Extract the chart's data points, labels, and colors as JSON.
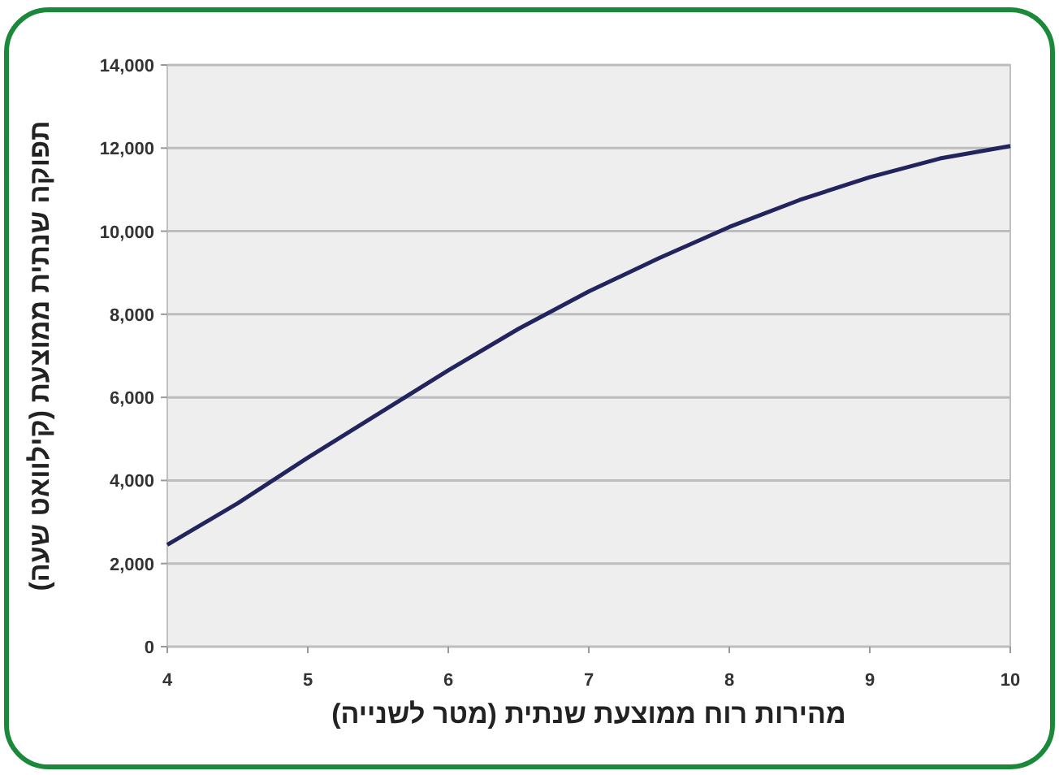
{
  "chart_data": {
    "type": "line",
    "xlabel": "מהירות רוח ממוצעת שנתית (מטר לשנייה)",
    "ylabel": "תפוקה שנתית ממוצעת (קילוואט שעה)",
    "x": [
      4,
      4.5,
      5,
      5.5,
      6,
      6.5,
      7,
      7.5,
      8,
      8.5,
      9,
      9.5,
      10
    ],
    "series": [
      {
        "color": "#23235e",
        "values": [
          2450,
          3450,
          4550,
          5600,
          6650,
          7650,
          8550,
          9350,
          10100,
          10750,
          11300,
          11750,
          12050
        ]
      }
    ],
    "xlim": [
      4,
      10
    ],
    "xticks": [
      4,
      5,
      6,
      7,
      8,
      9,
      10
    ],
    "ylim": [
      0,
      14000
    ],
    "yticks": [
      {
        "value": 0,
        "label": "0"
      },
      {
        "value": 2000,
        "label": "2,000"
      },
      {
        "value": 4000,
        "label": "4,000"
      },
      {
        "value": 6000,
        "label": "6,000"
      },
      {
        "value": 8000,
        "label": "8,000"
      },
      {
        "value": 10000,
        "label": "10,000"
      },
      {
        "value": 12000,
        "label": "12,000"
      },
      {
        "value": 14000,
        "label": "14,000"
      }
    ],
    "grid": "y",
    "marker": "none",
    "line_style": "solid"
  }
}
